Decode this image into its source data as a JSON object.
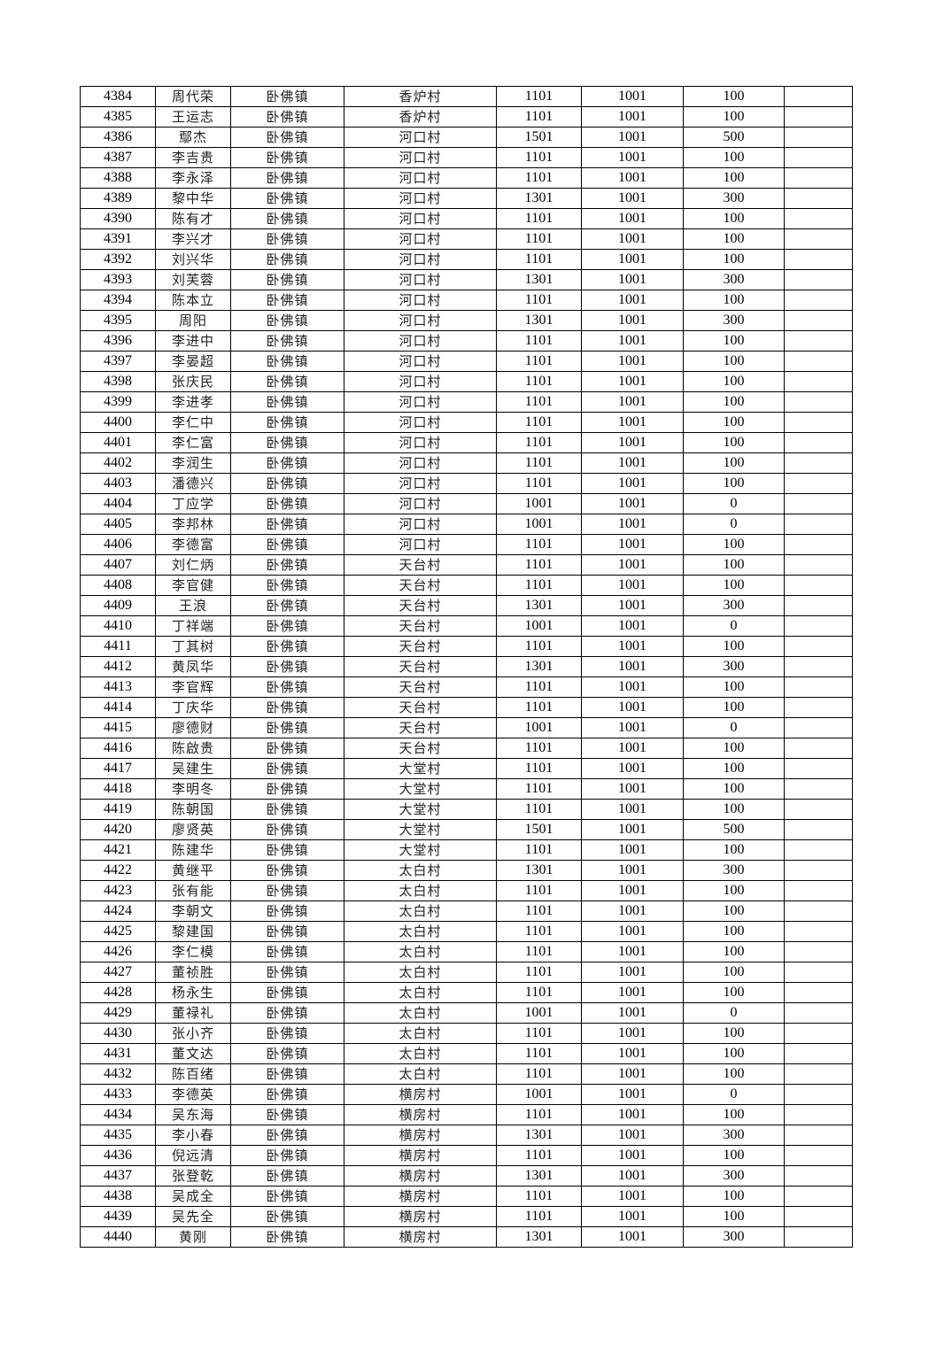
{
  "table": {
    "rows": [
      [
        "4384",
        "周代荣",
        "卧佛镇",
        "香炉村",
        "1101",
        "1001",
        "100",
        ""
      ],
      [
        "4385",
        "王运志",
        "卧佛镇",
        "香炉村",
        "1101",
        "1001",
        "100",
        ""
      ],
      [
        "4386",
        "鄢杰",
        "卧佛镇",
        "河口村",
        "1501",
        "1001",
        "500",
        ""
      ],
      [
        "4387",
        "李吉贵",
        "卧佛镇",
        "河口村",
        "1101",
        "1001",
        "100",
        ""
      ],
      [
        "4388",
        "李永泽",
        "卧佛镇",
        "河口村",
        "1101",
        "1001",
        "100",
        ""
      ],
      [
        "4389",
        "黎中华",
        "卧佛镇",
        "河口村",
        "1301",
        "1001",
        "300",
        ""
      ],
      [
        "4390",
        "陈有才",
        "卧佛镇",
        "河口村",
        "1101",
        "1001",
        "100",
        ""
      ],
      [
        "4391",
        "李兴才",
        "卧佛镇",
        "河口村",
        "1101",
        "1001",
        "100",
        ""
      ],
      [
        "4392",
        "刘兴华",
        "卧佛镇",
        "河口村",
        "1101",
        "1001",
        "100",
        ""
      ],
      [
        "4393",
        "刘芙蓉",
        "卧佛镇",
        "河口村",
        "1301",
        "1001",
        "300",
        ""
      ],
      [
        "4394",
        "陈本立",
        "卧佛镇",
        "河口村",
        "1101",
        "1001",
        "100",
        ""
      ],
      [
        "4395",
        "周阳",
        "卧佛镇",
        "河口村",
        "1301",
        "1001",
        "300",
        ""
      ],
      [
        "4396",
        "李进中",
        "卧佛镇",
        "河口村",
        "1101",
        "1001",
        "100",
        ""
      ],
      [
        "4397",
        "李晏超",
        "卧佛镇",
        "河口村",
        "1101",
        "1001",
        "100",
        ""
      ],
      [
        "4398",
        "张庆民",
        "卧佛镇",
        "河口村",
        "1101",
        "1001",
        "100",
        ""
      ],
      [
        "4399",
        "李进孝",
        "卧佛镇",
        "河口村",
        "1101",
        "1001",
        "100",
        ""
      ],
      [
        "4400",
        "李仁中",
        "卧佛镇",
        "河口村",
        "1101",
        "1001",
        "100",
        ""
      ],
      [
        "4401",
        "李仁富",
        "卧佛镇",
        "河口村",
        "1101",
        "1001",
        "100",
        ""
      ],
      [
        "4402",
        "李润生",
        "卧佛镇",
        "河口村",
        "1101",
        "1001",
        "100",
        ""
      ],
      [
        "4403",
        "潘德兴",
        "卧佛镇",
        "河口村",
        "1101",
        "1001",
        "100",
        ""
      ],
      [
        "4404",
        "丁应学",
        "卧佛镇",
        "河口村",
        "1001",
        "1001",
        "0",
        ""
      ],
      [
        "4405",
        "李邦林",
        "卧佛镇",
        "河口村",
        "1001",
        "1001",
        "0",
        ""
      ],
      [
        "4406",
        "李德富",
        "卧佛镇",
        "河口村",
        "1101",
        "1001",
        "100",
        ""
      ],
      [
        "4407",
        "刘仁炳",
        "卧佛镇",
        "天台村",
        "1101",
        "1001",
        "100",
        ""
      ],
      [
        "4408",
        "李官健",
        "卧佛镇",
        "天台村",
        "1101",
        "1001",
        "100",
        ""
      ],
      [
        "4409",
        "王浪",
        "卧佛镇",
        "天台村",
        "1301",
        "1001",
        "300",
        ""
      ],
      [
        "4410",
        "丁祥端",
        "卧佛镇",
        "天台村",
        "1001",
        "1001",
        "0",
        ""
      ],
      [
        "4411",
        "丁其树",
        "卧佛镇",
        "天台村",
        "1101",
        "1001",
        "100",
        ""
      ],
      [
        "4412",
        "黄凤华",
        "卧佛镇",
        "天台村",
        "1301",
        "1001",
        "300",
        ""
      ],
      [
        "4413",
        "李官辉",
        "卧佛镇",
        "天台村",
        "1101",
        "1001",
        "100",
        ""
      ],
      [
        "4414",
        "丁庆华",
        "卧佛镇",
        "天台村",
        "1101",
        "1001",
        "100",
        ""
      ],
      [
        "4415",
        "廖德财",
        "卧佛镇",
        "天台村",
        "1001",
        "1001",
        "0",
        ""
      ],
      [
        "4416",
        "陈啟贵",
        "卧佛镇",
        "天台村",
        "1101",
        "1001",
        "100",
        ""
      ],
      [
        "4417",
        "吴建生",
        "卧佛镇",
        "大堂村",
        "1101",
        "1001",
        "100",
        ""
      ],
      [
        "4418",
        "李明冬",
        "卧佛镇",
        "大堂村",
        "1101",
        "1001",
        "100",
        ""
      ],
      [
        "4419",
        "陈朝国",
        "卧佛镇",
        "大堂村",
        "1101",
        "1001",
        "100",
        ""
      ],
      [
        "4420",
        "廖贤英",
        "卧佛镇",
        "大堂村",
        "1501",
        "1001",
        "500",
        ""
      ],
      [
        "4421",
        "陈建华",
        "卧佛镇",
        "大堂村",
        "1101",
        "1001",
        "100",
        ""
      ],
      [
        "4422",
        "黄继平",
        "卧佛镇",
        "太白村",
        "1301",
        "1001",
        "300",
        ""
      ],
      [
        "4423",
        "张有能",
        "卧佛镇",
        "太白村",
        "1101",
        "1001",
        "100",
        ""
      ],
      [
        "4424",
        "李朝文",
        "卧佛镇",
        "太白村",
        "1101",
        "1001",
        "100",
        ""
      ],
      [
        "4425",
        "黎建国",
        "卧佛镇",
        "太白村",
        "1101",
        "1001",
        "100",
        ""
      ],
      [
        "4426",
        "李仁模",
        "卧佛镇",
        "太白村",
        "1101",
        "1001",
        "100",
        ""
      ],
      [
        "4427",
        "董祯胜",
        "卧佛镇",
        "太白村",
        "1101",
        "1001",
        "100",
        ""
      ],
      [
        "4428",
        "杨永生",
        "卧佛镇",
        "太白村",
        "1101",
        "1001",
        "100",
        ""
      ],
      [
        "4429",
        "董禄礼",
        "卧佛镇",
        "太白村",
        "1001",
        "1001",
        "0",
        ""
      ],
      [
        "4430",
        "张小齐",
        "卧佛镇",
        "太白村",
        "1101",
        "1001",
        "100",
        ""
      ],
      [
        "4431",
        "董文达",
        "卧佛镇",
        "太白村",
        "1101",
        "1001",
        "100",
        ""
      ],
      [
        "4432",
        "陈百绪",
        "卧佛镇",
        "太白村",
        "1101",
        "1001",
        "100",
        ""
      ],
      [
        "4433",
        "李德英",
        "卧佛镇",
        "横房村",
        "1001",
        "1001",
        "0",
        ""
      ],
      [
        "4434",
        "吴东海",
        "卧佛镇",
        "横房村",
        "1101",
        "1001",
        "100",
        ""
      ],
      [
        "4435",
        "李小春",
        "卧佛镇",
        "横房村",
        "1301",
        "1001",
        "300",
        ""
      ],
      [
        "4436",
        "倪远清",
        "卧佛镇",
        "横房村",
        "1101",
        "1001",
        "100",
        ""
      ],
      [
        "4437",
        "张登乾",
        "卧佛镇",
        "横房村",
        "1301",
        "1001",
        "300",
        ""
      ],
      [
        "4438",
        "吴成全",
        "卧佛镇",
        "横房村",
        "1101",
        "1001",
        "100",
        ""
      ],
      [
        "4439",
        "吴先全",
        "卧佛镇",
        "横房村",
        "1101",
        "1001",
        "100",
        ""
      ],
      [
        "4440",
        "黄刚",
        "卧佛镇",
        "横房村",
        "1301",
        "1001",
        "300",
        ""
      ]
    ]
  }
}
